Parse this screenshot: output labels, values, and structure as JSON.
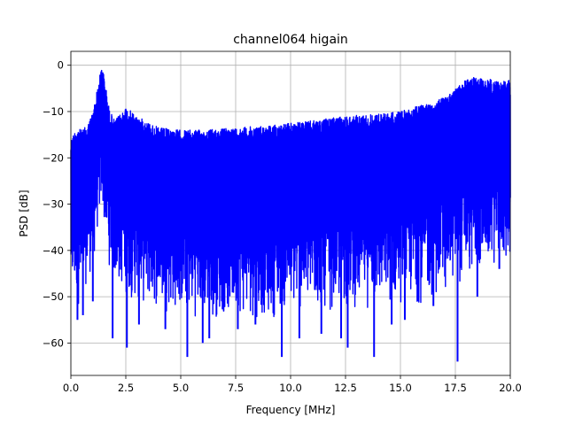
{
  "chart_data": {
    "type": "line",
    "title": "channel064 higain",
    "xlabel": "Frequency [MHz]",
    "ylabel": "PSD [dB]",
    "xlim": [
      0,
      20
    ],
    "ylim": [
      -67,
      3
    ],
    "xticks": [
      0.0,
      2.5,
      5.0,
      7.5,
      10.0,
      12.5,
      15.0,
      17.5,
      20.0
    ],
    "xtick_labels": [
      "0.0",
      "2.5",
      "5.0",
      "7.5",
      "10.0",
      "12.5",
      "15.0",
      "17.5",
      "20.0"
    ],
    "yticks": [
      0,
      -10,
      -20,
      -30,
      -40,
      -50,
      -60
    ],
    "ytick_labels": [
      "0",
      "−10",
      "−20",
      "−30",
      "−40",
      "−50",
      "−60"
    ],
    "grid": true,
    "color": "#0000ff",
    "series": [
      {
        "x": [
          0.0,
          0.25,
          0.5,
          0.75,
          1.0,
          1.25,
          1.4,
          1.5,
          1.75,
          2.0,
          2.5,
          3.0,
          4.0,
          5.0,
          6.0,
          7.5,
          9.0,
          10.0,
          11.0,
          12.5,
          14.0,
          15.0,
          16.0,
          17.0,
          17.5,
          18.0,
          18.5,
          19.0,
          19.5,
          20.0
        ],
        "upper": [
          -16,
          -13.5,
          -14,
          -13,
          -10,
          -4,
          0,
          -2,
          -9.5,
          -12,
          -9,
          -11,
          -13.5,
          -14,
          -14,
          -13.5,
          -13,
          -12.5,
          -12,
          -11,
          -10.5,
          -10,
          -8.5,
          -7,
          -5,
          -3,
          -2.5,
          -3,
          -3.5,
          -3
        ],
        "lower": [
          -50,
          -52,
          -53,
          -46,
          -45,
          -35,
          -31,
          -35,
          -44,
          -48,
          -50,
          -52,
          -53,
          -54,
          -55,
          -55,
          -55,
          -54,
          -54,
          -53,
          -53,
          -52,
          -52,
          -50,
          -48,
          -47,
          -46,
          -44,
          -43,
          -44
        ],
        "dips": [
          [
            0.3,
            -55
          ],
          [
            0.55,
            -54
          ],
          [
            1.0,
            -51
          ],
          [
            1.9,
            -59
          ],
          [
            2.55,
            -61
          ],
          [
            3.1,
            -56
          ],
          [
            4.3,
            -57
          ],
          [
            5.3,
            -63
          ],
          [
            6.0,
            -60
          ],
          [
            6.3,
            -59
          ],
          [
            7.6,
            -57
          ],
          [
            8.4,
            -56
          ],
          [
            9.6,
            -63
          ],
          [
            10.4,
            -59
          ],
          [
            11.4,
            -58
          ],
          [
            12.3,
            -59
          ],
          [
            12.6,
            -61
          ],
          [
            13.8,
            -63
          ],
          [
            14.6,
            -56
          ],
          [
            15.2,
            -55
          ],
          [
            16.5,
            -52
          ],
          [
            17.6,
            -64
          ],
          [
            18.5,
            -50
          ],
          [
            19.5,
            -44
          ]
        ],
        "name": ""
      }
    ]
  }
}
